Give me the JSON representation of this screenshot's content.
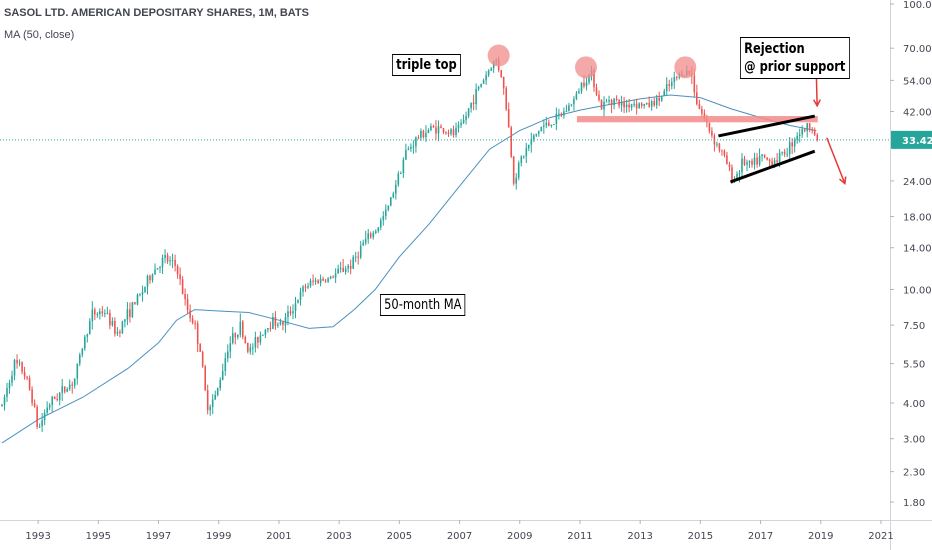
{
  "chart_data": {
    "type": "candlestick",
    "title": "SASOL LTD. AMERICAN DEPOSITARY SHARES, 1M, BATS",
    "subtitle": "MA (50, close)",
    "y_scale": "log",
    "ylim": [
      1.5,
      100
    ],
    "y_ticks": [
      "100.00",
      "70.00",
      "54.00",
      "42.00",
      "33.42",
      "24.00",
      "18.00",
      "14.00",
      "10.00",
      "7.50",
      "5.50",
      "4.00",
      "3.00",
      "2.30",
      "1.80"
    ],
    "x_ticks": [
      "1993",
      "1995",
      "1997",
      "1999",
      "2001",
      "2003",
      "2005",
      "2007",
      "2009",
      "2011",
      "2013",
      "2015",
      "2017",
      "2019",
      "2021"
    ],
    "last_price": 33.42,
    "price_path": [
      [
        1991.8,
        3.9
      ],
      [
        1992.2,
        5.5
      ],
      [
        1992.5,
        5.2
      ],
      [
        1992.8,
        4.2
      ],
      [
        1993.0,
        3.2
      ],
      [
        1993.3,
        3.9
      ],
      [
        1993.7,
        4.3
      ],
      [
        1994.2,
        4.8
      ],
      [
        1994.5,
        6.5
      ],
      [
        1994.8,
        8.2
      ],
      [
        1995.2,
        8.4
      ],
      [
        1995.6,
        7.0
      ],
      [
        1996.0,
        8.3
      ],
      [
        1996.4,
        9.6
      ],
      [
        1996.8,
        11.5
      ],
      [
        1997.2,
        12.8
      ],
      [
        1997.6,
        12.0
      ],
      [
        1997.9,
        8.8
      ],
      [
        1998.2,
        7.5
      ],
      [
        1998.4,
        6.0
      ],
      [
        1998.6,
        3.9
      ],
      [
        1998.9,
        4.2
      ],
      [
        1999.3,
        6.3
      ],
      [
        1999.7,
        7.5
      ],
      [
        2000.0,
        6.0
      ],
      [
        2000.4,
        7.0
      ],
      [
        2000.8,
        7.8
      ],
      [
        2001.1,
        7.5
      ],
      [
        2001.5,
        8.8
      ],
      [
        2001.9,
        10.3
      ],
      [
        2002.3,
        10.8
      ],
      [
        2002.7,
        10.9
      ],
      [
        2003.0,
        11.6
      ],
      [
        2003.4,
        12.2
      ],
      [
        2003.8,
        14.5
      ],
      [
        2004.2,
        16.0
      ],
      [
        2004.6,
        19.0
      ],
      [
        2004.9,
        24.0
      ],
      [
        2005.2,
        30.0
      ],
      [
        2005.6,
        34.0
      ],
      [
        2005.9,
        36.0
      ],
      [
        2006.2,
        37.0
      ],
      [
        2006.5,
        36.0
      ],
      [
        2006.8,
        35.0
      ],
      [
        2007.1,
        38.0
      ],
      [
        2007.5,
        48.0
      ],
      [
        2007.9,
        57.0
      ],
      [
        2008.2,
        64.0
      ],
      [
        2008.4,
        56.0
      ],
      [
        2008.6,
        40.0
      ],
      [
        2008.8,
        24.0
      ],
      [
        2009.0,
        28.0
      ],
      [
        2009.3,
        32.0
      ],
      [
        2009.7,
        37.0
      ],
      [
        2010.0,
        38.0
      ],
      [
        2010.4,
        41.0
      ],
      [
        2010.8,
        46.0
      ],
      [
        2011.1,
        54.0
      ],
      [
        2011.4,
        57.0
      ],
      [
        2011.7,
        43.0
      ],
      [
        2012.0,
        47.0
      ],
      [
        2012.4,
        44.0
      ],
      [
        2012.8,
        45.0
      ],
      [
        2013.2,
        44.0
      ],
      [
        2013.6,
        46.0
      ],
      [
        2014.0,
        52.0
      ],
      [
        2014.4,
        58.0
      ],
      [
        2014.7,
        57.0
      ],
      [
        2014.9,
        45.0
      ],
      [
        2015.2,
        38.0
      ],
      [
        2015.5,
        33.0
      ],
      [
        2015.8,
        29.0
      ],
      [
        2016.1,
        24.0
      ],
      [
        2016.4,
        28.0
      ],
      [
        2016.7,
        27.0
      ],
      [
        2017.0,
        29.0
      ],
      [
        2017.3,
        28.0
      ],
      [
        2017.6,
        29.0
      ],
      [
        2017.9,
        31.0
      ],
      [
        2018.2,
        35.0
      ],
      [
        2018.5,
        36.5
      ],
      [
        2018.7,
        38.0
      ],
      [
        2018.85,
        33.42
      ]
    ],
    "moving_average": {
      "name": "MA (50, close)",
      "points": [
        [
          1991.8,
          2.9
        ],
        [
          1993.0,
          3.5
        ],
        [
          1994.5,
          4.2
        ],
        [
          1996.0,
          5.3
        ],
        [
          1997.0,
          6.5
        ],
        [
          1997.6,
          7.8
        ],
        [
          1998.2,
          8.5
        ],
        [
          1999.0,
          8.4
        ],
        [
          2000.0,
          8.3
        ],
        [
          2001.0,
          7.8
        ],
        [
          2002.0,
          7.3
        ],
        [
          2002.8,
          7.4
        ],
        [
          2003.5,
          8.5
        ],
        [
          2004.2,
          10.0
        ],
        [
          2005.0,
          13.0
        ],
        [
          2006.0,
          17.0
        ],
        [
          2007.0,
          23.0
        ],
        [
          2008.0,
          31.0
        ],
        [
          2009.0,
          36.0
        ],
        [
          2010.0,
          40.0
        ],
        [
          2011.0,
          42.5
        ],
        [
          2012.0,
          44.5
        ],
        [
          2013.0,
          46.5
        ],
        [
          2014.0,
          48.0
        ],
        [
          2015.0,
          47.0
        ],
        [
          2016.0,
          43.0
        ],
        [
          2017.0,
          40.0
        ],
        [
          2018.0,
          37.5
        ],
        [
          2018.85,
          36.0
        ]
      ]
    },
    "annotations": {
      "triple_top_label": "triple top",
      "ma_label": "50-month MA",
      "rejection_line1": "Rejection",
      "rejection_line2": "@ prior support",
      "tops": [
        [
          2008.3,
          66.0
        ],
        [
          2011.2,
          60.0
        ],
        [
          2014.5,
          60.0
        ]
      ],
      "support_zone": [
        2010.9,
        2018.9,
        38.5,
        40.5
      ],
      "channel_upper": [
        [
          2015.6,
          34.5
        ],
        [
          2018.8,
          40.5
        ]
      ],
      "channel_lower": [
        [
          2016.0,
          23.8
        ],
        [
          2018.8,
          30.5
        ]
      ]
    },
    "colors": {
      "up": "#26a69a",
      "down": "#ef5350",
      "ma": "#4a90c0",
      "last_price_line": "#26a69a",
      "annotation_red": "#e53935",
      "zone": "#f28b8b"
    }
  }
}
